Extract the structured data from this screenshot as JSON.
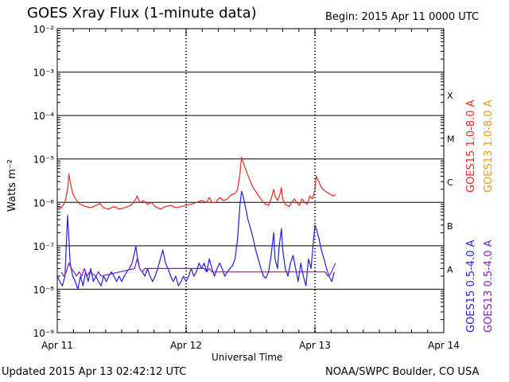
{
  "header": {
    "title": "GOES Xray Flux (1-minute data)",
    "begin": "Begin:  2015 Apr 11 0000 UTC"
  },
  "footer": {
    "updated": "Updated 2015 Apr 13 02:42:12 UTC",
    "credit": "NOAA/SWPC Boulder, CO USA"
  },
  "chart_data": {
    "type": "line",
    "title": "GOES Xray Flux (1-minute data)",
    "xlabel": "Universal Time",
    "ylabel": "Watts m⁻²",
    "yscale": "log",
    "ylim": [
      1e-09,
      0.01
    ],
    "xlim_days": [
      0,
      3
    ],
    "x_ticks": [
      {
        "day": 0,
        "label": "Apr 11"
      },
      {
        "day": 1,
        "label": "Apr 12"
      },
      {
        "day": 2,
        "label": "Apr 13"
      },
      {
        "day": 3,
        "label": "Apr 14"
      }
    ],
    "y_ticks": [
      {
        "exp": -9,
        "label": "10⁻⁹"
      },
      {
        "exp": -8,
        "label": "10⁻⁸"
      },
      {
        "exp": -7,
        "label": "10⁻⁷"
      },
      {
        "exp": -6,
        "label": "10⁻⁶"
      },
      {
        "exp": -5,
        "label": "10⁻⁵"
      },
      {
        "exp": -4,
        "label": "10⁻⁴"
      },
      {
        "exp": -3,
        "label": "10⁻³"
      },
      {
        "exp": -2,
        "label": "10⁻²"
      }
    ],
    "flare_classes": [
      {
        "label": "X",
        "exp": -4
      },
      {
        "label": "M",
        "exp": -5
      },
      {
        "label": "C",
        "exp": -6
      },
      {
        "label": "B",
        "exp": -7
      },
      {
        "label": "A",
        "exp": -8
      }
    ],
    "grid": true,
    "series": [
      {
        "name": "GOES15 1.0-8.0 A",
        "color": "#e8281f",
        "points": [
          [
            0.0,
            8e-07
          ],
          [
            0.03,
            7.5e-07
          ],
          [
            0.06,
            1e-06
          ],
          [
            0.08,
            2e-06
          ],
          [
            0.09,
            4.5e-06
          ],
          [
            0.1,
            3e-06
          ],
          [
            0.12,
            1.6e-06
          ],
          [
            0.15,
            1.1e-06
          ],
          [
            0.18,
            9e-07
          ],
          [
            0.22,
            8e-07
          ],
          [
            0.26,
            7.5e-07
          ],
          [
            0.3,
            8.5e-07
          ],
          [
            0.33,
            9.5e-07
          ],
          [
            0.36,
            7.5e-07
          ],
          [
            0.4,
            7e-07
          ],
          [
            0.44,
            8e-07
          ],
          [
            0.48,
            7e-07
          ],
          [
            0.52,
            7.5e-07
          ],
          [
            0.55,
            8e-07
          ],
          [
            0.58,
            9e-07
          ],
          [
            0.61,
            1.2e-06
          ],
          [
            0.62,
            1.4e-06
          ],
          [
            0.64,
            1e-06
          ],
          [
            0.67,
            1.1e-06
          ],
          [
            0.7,
            9e-07
          ],
          [
            0.73,
            1e-06
          ],
          [
            0.76,
            8e-07
          ],
          [
            0.8,
            7e-07
          ],
          [
            0.84,
            8e-07
          ],
          [
            0.88,
            8.5e-07
          ],
          [
            0.92,
            7.5e-07
          ],
          [
            0.96,
            8e-07
          ],
          [
            1.0,
            8.5e-07
          ],
          [
            1.04,
            9e-07
          ],
          [
            1.08,
            1e-06
          ],
          [
            1.12,
            1.1e-06
          ],
          [
            1.16,
            1e-06
          ],
          [
            1.18,
            1.3e-06
          ],
          [
            1.2,
            1e-06
          ],
          [
            1.23,
            1e-06
          ],
          [
            1.26,
            1.3e-06
          ],
          [
            1.29,
            1.1e-06
          ],
          [
            1.32,
            1.2e-06
          ],
          [
            1.35,
            1.5e-06
          ],
          [
            1.38,
            1.6e-06
          ],
          [
            1.4,
            2e-06
          ],
          [
            1.42,
            5e-06
          ],
          [
            1.43,
            1.1e-05
          ],
          [
            1.44,
            9e-06
          ],
          [
            1.46,
            6e-06
          ],
          [
            1.49,
            3.5e-06
          ],
          [
            1.52,
            2.2e-06
          ],
          [
            1.55,
            1.6e-06
          ],
          [
            1.58,
            1.2e-06
          ],
          [
            1.6,
            1e-06
          ],
          [
            1.62,
            9e-07
          ],
          [
            1.64,
            8.5e-07
          ],
          [
            1.66,
            1.2e-06
          ],
          [
            1.68,
            2e-06
          ],
          [
            1.69,
            1.4e-06
          ],
          [
            1.71,
            1.1e-06
          ],
          [
            1.73,
            1.6e-06
          ],
          [
            1.74,
            2.2e-06
          ],
          [
            1.75,
            1.2e-06
          ],
          [
            1.77,
            9e-07
          ],
          [
            1.8,
            8e-07
          ],
          [
            1.82,
            1e-06
          ],
          [
            1.84,
            1.2e-06
          ],
          [
            1.86,
            1e-06
          ],
          [
            1.88,
            8.5e-07
          ],
          [
            1.9,
            1.2e-06
          ],
          [
            1.92,
            1e-06
          ],
          [
            1.94,
            9e-07
          ],
          [
            1.96,
            1.4e-06
          ],
          [
            1.98,
            1.2e-06
          ],
          [
            2.0,
            2e-06
          ],
          [
            2.01,
            4e-06
          ],
          [
            2.03,
            3e-06
          ],
          [
            2.05,
            2.2e-06
          ],
          [
            2.08,
            1.8e-06
          ],
          [
            2.11,
            1.6e-06
          ],
          [
            2.14,
            1.4e-06
          ],
          [
            2.16,
            1.5e-06
          ]
        ]
      },
      {
        "name": "GOES13 1.0-8.0 A",
        "color": "#e89a1e",
        "points": []
      },
      {
        "name": "GOES15 0.5-4.0 A",
        "color": "#1e1ee8",
        "points": [
          [
            0.0,
            2e-08
          ],
          [
            0.02,
            1.5e-08
          ],
          [
            0.04,
            1.2e-08
          ],
          [
            0.06,
            2e-08
          ],
          [
            0.07,
            1e-07
          ],
          [
            0.08,
            5e-07
          ],
          [
            0.09,
            1.5e-07
          ],
          [
            0.1,
            4e-08
          ],
          [
            0.12,
            2e-08
          ],
          [
            0.14,
            1.5e-08
          ],
          [
            0.16,
            1e-08
          ],
          [
            0.18,
            2e-08
          ],
          [
            0.2,
            1.2e-08
          ],
          [
            0.22,
            2.5e-08
          ],
          [
            0.24,
            1.5e-08
          ],
          [
            0.26,
            3e-08
          ],
          [
            0.28,
            1.5e-08
          ],
          [
            0.3,
            2e-08
          ],
          [
            0.32,
            1.5e-08
          ],
          [
            0.34,
            1.2e-08
          ],
          [
            0.36,
            2e-08
          ],
          [
            0.38,
            1.5e-08
          ],
          [
            0.4,
            2e-08
          ],
          [
            0.42,
            2.5e-08
          ],
          [
            0.44,
            2e-08
          ],
          [
            0.46,
            1.5e-08
          ],
          [
            0.48,
            2e-08
          ],
          [
            0.5,
            1.5e-08
          ],
          [
            0.52,
            2e-08
          ],
          [
            0.54,
            2.5e-08
          ],
          [
            0.56,
            3e-08
          ],
          [
            0.58,
            4e-08
          ],
          [
            0.6,
            7e-08
          ],
          [
            0.61,
            1e-07
          ],
          [
            0.62,
            6e-08
          ],
          [
            0.64,
            3e-08
          ],
          [
            0.66,
            2.5e-08
          ],
          [
            0.68,
            2e-08
          ],
          [
            0.7,
            3e-08
          ],
          [
            0.72,
            2e-08
          ],
          [
            0.74,
            1.5e-08
          ],
          [
            0.76,
            2e-08
          ],
          [
            0.78,
            3e-08
          ],
          [
            0.8,
            5e-08
          ],
          [
            0.82,
            8e-08
          ],
          [
            0.84,
            4e-08
          ],
          [
            0.86,
            3e-08
          ],
          [
            0.88,
            2e-08
          ],
          [
            0.9,
            1.5e-08
          ],
          [
            0.92,
            2e-08
          ],
          [
            0.94,
            1.2e-08
          ],
          [
            0.96,
            1.5e-08
          ],
          [
            0.98,
            2e-08
          ],
          [
            1.0,
            1.5e-08
          ],
          [
            1.02,
            2e-08
          ],
          [
            1.04,
            3e-08
          ],
          [
            1.06,
            2e-08
          ],
          [
            1.08,
            2.5e-08
          ],
          [
            1.1,
            4e-08
          ],
          [
            1.12,
            3e-08
          ],
          [
            1.14,
            4e-08
          ],
          [
            1.16,
            2.5e-08
          ],
          [
            1.18,
            5e-08
          ],
          [
            1.2,
            3e-08
          ],
          [
            1.22,
            2e-08
          ],
          [
            1.24,
            3e-08
          ],
          [
            1.26,
            4e-08
          ],
          [
            1.28,
            3e-08
          ],
          [
            1.3,
            2e-08
          ],
          [
            1.32,
            2.5e-08
          ],
          [
            1.34,
            3e-08
          ],
          [
            1.36,
            3.5e-08
          ],
          [
            1.38,
            5e-08
          ],
          [
            1.4,
            1.5e-07
          ],
          [
            1.41,
            4e-07
          ],
          [
            1.42,
            1e-06
          ],
          [
            1.43,
            1.8e-06
          ],
          [
            1.44,
            1.5e-06
          ],
          [
            1.46,
            8e-07
          ],
          [
            1.48,
            4e-07
          ],
          [
            1.5,
            2.5e-07
          ],
          [
            1.52,
            1.5e-07
          ],
          [
            1.54,
            8e-08
          ],
          [
            1.56,
            5e-08
          ],
          [
            1.58,
            3e-08
          ],
          [
            1.6,
            2e-08
          ],
          [
            1.62,
            1.8e-08
          ],
          [
            1.64,
            2.5e-08
          ],
          [
            1.66,
            6e-08
          ],
          [
            1.68,
            2e-07
          ],
          [
            1.69,
            5e-08
          ],
          [
            1.71,
            3e-08
          ],
          [
            1.72,
            8e-08
          ],
          [
            1.73,
            1.5e-07
          ],
          [
            1.74,
            2.5e-07
          ],
          [
            1.75,
            8e-08
          ],
          [
            1.77,
            3e-08
          ],
          [
            1.79,
            2e-08
          ],
          [
            1.81,
            4e-08
          ],
          [
            1.83,
            6e-08
          ],
          [
            1.85,
            3e-08
          ],
          [
            1.87,
            1.5e-08
          ],
          [
            1.89,
            4e-08
          ],
          [
            1.91,
            2e-08
          ],
          [
            1.93,
            1.2e-08
          ],
          [
            1.95,
            5e-08
          ],
          [
            1.97,
            3e-08
          ],
          [
            1.99,
            1.5e-07
          ],
          [
            2.0,
            3e-07
          ],
          [
            2.01,
            2.5e-07
          ],
          [
            2.03,
            1.5e-07
          ],
          [
            2.05,
            8e-08
          ],
          [
            2.07,
            5e-08
          ],
          [
            2.09,
            3e-08
          ],
          [
            2.11,
            2e-08
          ],
          [
            2.13,
            1.5e-08
          ],
          [
            2.15,
            2.5e-08
          ]
        ]
      },
      {
        "name": "GOES13 0.5-4.0 A",
        "color": "#7a1ec8",
        "points": [
          [
            0.03,
            2.5e-08
          ],
          [
            0.05,
            2e-08
          ],
          [
            0.07,
            2.5e-08
          ],
          [
            0.09,
            4e-08
          ],
          [
            0.11,
            3e-08
          ],
          [
            0.13,
            2.5e-08
          ],
          [
            0.15,
            2e-08
          ],
          [
            0.17,
            2.5e-08
          ],
          [
            0.19,
            2e-08
          ],
          [
            0.21,
            3e-08
          ],
          [
            0.23,
            2e-08
          ],
          [
            0.25,
            2.5e-08
          ],
          [
            0.3,
            2e-08
          ],
          [
            0.32,
            2.5e-08
          ],
          [
            0.34,
            2e-08
          ],
          [
            0.6,
            3e-08
          ],
          [
            0.62,
            5e-08
          ],
          [
            0.64,
            3e-08
          ],
          [
            0.66,
            2.5e-08
          ],
          [
            0.68,
            3e-08
          ],
          [
            1.14,
            3e-08
          ],
          [
            1.16,
            2.5e-08
          ],
          [
            1.18,
            3e-08
          ],
          [
            1.2,
            2.5e-08
          ],
          [
            2.08,
            2.5e-08
          ],
          [
            2.1,
            2e-08
          ],
          [
            2.12,
            2.2e-08
          ],
          [
            2.14,
            3e-08
          ],
          [
            2.16,
            4e-08
          ]
        ]
      }
    ]
  }
}
